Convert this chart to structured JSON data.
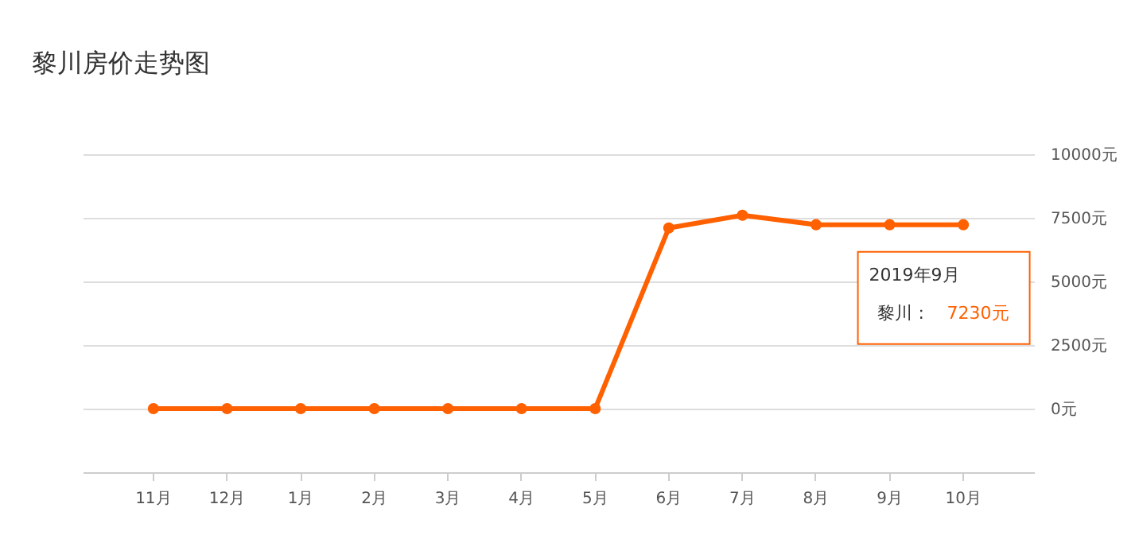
{
  "chart_data": {
    "type": "line",
    "title": "黎川房价走势图",
    "categories": [
      "11月",
      "12月",
      "1月",
      "2月",
      "3月",
      "4月",
      "5月",
      "6月",
      "7月",
      "8月",
      "9月",
      "10月"
    ],
    "series": [
      {
        "name": "黎川",
        "color": "#ff6000",
        "values": [
          0,
          0,
          0,
          0,
          0,
          0,
          0,
          7100,
          7600,
          7230,
          7230,
          7230
        ]
      }
    ],
    "ylim": [
      -2500,
      10000
    ],
    "yticks": [
      {
        "value": 0,
        "label": "0元"
      },
      {
        "value": 2500,
        "label": "2500元"
      },
      {
        "value": 5000,
        "label": "5000元"
      },
      {
        "value": 7500,
        "label": "7500元"
      },
      {
        "value": 10000,
        "label": "10000元"
      }
    ],
    "grid": "y",
    "marker": "circle",
    "line_style": "solid",
    "annotations": [
      {
        "text": "2019年9月",
        "x": "9月",
        "y": 7230
      },
      ":",
      "7230元"
    ]
  }
}
